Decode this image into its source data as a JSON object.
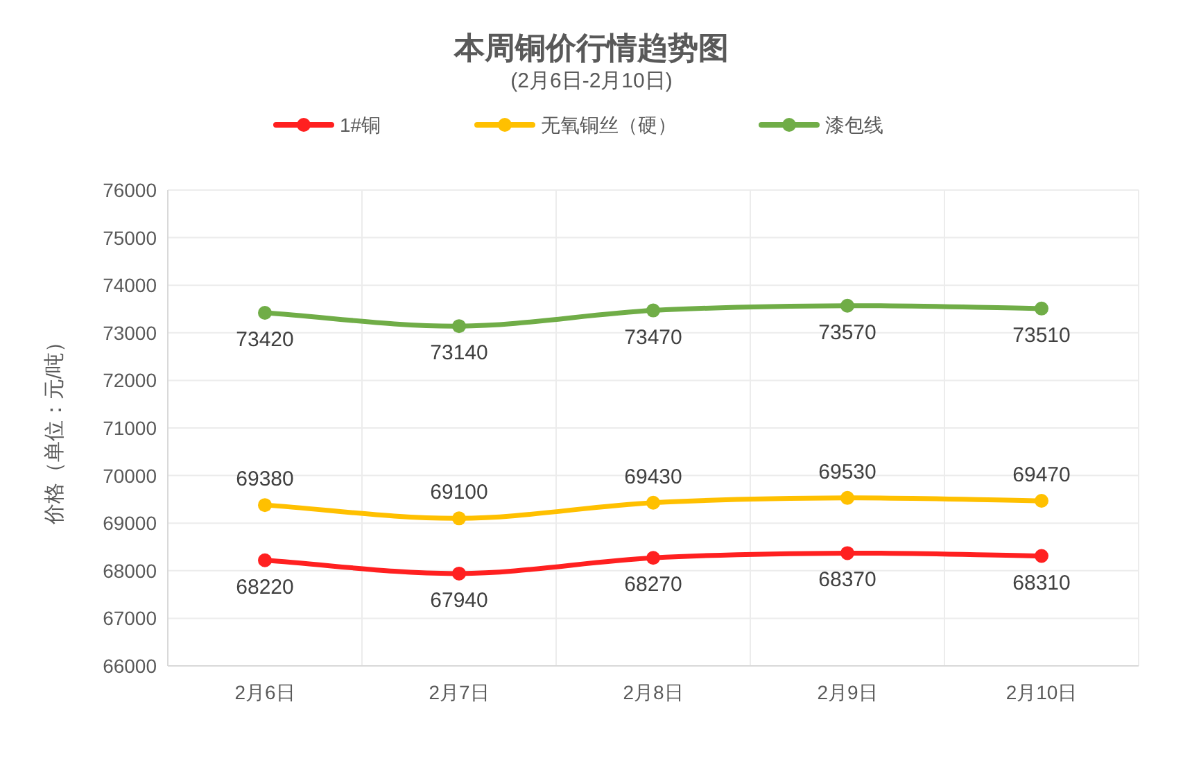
{
  "chart_data": {
    "type": "line",
    "title": "本周铜价行情趋势图",
    "subtitle": "(2月6日-2月10日)",
    "ylabel": "价格（单位：元/吨）",
    "categories": [
      "2月6日",
      "2月7日",
      "2月8日",
      "2月9日",
      "2月10日"
    ],
    "series": [
      {
        "name": "1#铜",
        "color": "#ff2020",
        "values": [
          68220,
          67940,
          68270,
          68370,
          68310
        ]
      },
      {
        "name": "无氧铜丝（硬）",
        "color": "#ffc000",
        "values": [
          69380,
          69100,
          69430,
          69530,
          69470
        ]
      },
      {
        "name": "漆包线",
        "color": "#70ad47",
        "values": [
          73420,
          73140,
          73470,
          73570,
          73510
        ]
      }
    ],
    "ylim": [
      66000,
      76000
    ],
    "yticks": [
      66000,
      67000,
      68000,
      69000,
      70000,
      71000,
      72000,
      73000,
      74000,
      75000,
      76000
    ],
    "grid": true,
    "legend": "top",
    "marker": "circle",
    "line_style": "solid",
    "data_labels": true
  }
}
